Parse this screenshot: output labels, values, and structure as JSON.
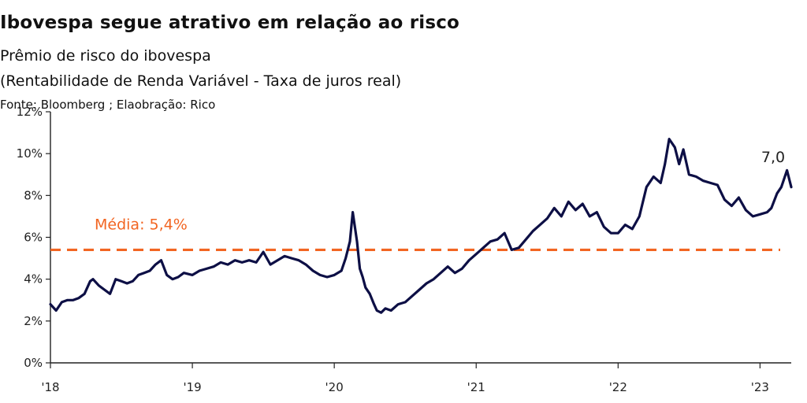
{
  "title": "Ibovespa segue atrativo em relação ao risco",
  "subtitle": "Prêmio de risco do ibovespa",
  "subtitle2": "(Rentabilidade de Renda Variável - Taxa de juros real)",
  "source": "Fonte: Bloomberg ; Elaobração: Rico",
  "colors": {
    "series": "#0d0f45",
    "mean": "#f26522",
    "axis": "#222222"
  },
  "chart_data": {
    "type": "line",
    "xlabel": "",
    "ylabel": "",
    "xlim": [
      2018.0,
      2023.22
    ],
    "ylim": [
      0,
      12
    ],
    "x_ticks": [
      2018,
      2019,
      2020,
      2021,
      2022,
      2023
    ],
    "x_tick_labels": [
      "'18",
      "'19",
      "'20",
      "'21",
      "'22",
      "'23"
    ],
    "y_ticks": [
      0,
      2,
      4,
      6,
      8,
      10,
      12
    ],
    "y_tick_labels": [
      "0%",
      "2%",
      "4%",
      "6%",
      "8%",
      "10%",
      "12%"
    ],
    "grid": false,
    "series": [
      {
        "x": [
          2018.0,
          2018.04,
          2018.08,
          2018.12,
          2018.16,
          2018.2,
          2018.24,
          2018.28,
          2018.3,
          2018.34,
          2018.38,
          2018.42,
          2018.46,
          2018.5,
          2018.54,
          2018.58,
          2018.62,
          2018.66,
          2018.7,
          2018.74,
          2018.78,
          2018.82,
          2018.86,
          2018.9,
          2018.94,
          2019.0,
          2019.05,
          2019.1,
          2019.15,
          2019.2,
          2019.25,
          2019.3,
          2019.35,
          2019.4,
          2019.45,
          2019.5,
          2019.55,
          2019.6,
          2019.65,
          2019.7,
          2019.75,
          2019.8,
          2019.85,
          2019.9,
          2019.95,
          2020.0,
          2020.05,
          2020.08,
          2020.11,
          2020.13,
          2020.16,
          2020.18,
          2020.2,
          2020.22,
          2020.25,
          2020.28,
          2020.3,
          2020.33,
          2020.36,
          2020.4,
          2020.45,
          2020.5,
          2020.55,
          2020.6,
          2020.65,
          2020.7,
          2020.75,
          2020.8,
          2020.85,
          2020.9,
          2020.95,
          2021.0,
          2021.05,
          2021.1,
          2021.15,
          2021.2,
          2021.25,
          2021.3,
          2021.35,
          2021.4,
          2021.45,
          2021.5,
          2021.55,
          2021.6,
          2021.65,
          2021.7,
          2021.75,
          2021.8,
          2021.85,
          2021.9,
          2021.95,
          2022.0,
          2022.05,
          2022.1,
          2022.15,
          2022.2,
          2022.25,
          2022.3,
          2022.33,
          2022.36,
          2022.4,
          2022.43,
          2022.46,
          2022.5,
          2022.55,
          2022.6,
          2022.65,
          2022.7,
          2022.75,
          2022.8,
          2022.85,
          2022.9,
          2022.95,
          2023.0,
          2023.05,
          2023.08,
          2023.12,
          2023.15,
          2023.19,
          2023.22
        ],
        "y": [
          2.8,
          2.5,
          2.9,
          3.0,
          3.0,
          3.1,
          3.3,
          3.9,
          4.0,
          3.7,
          3.5,
          3.3,
          4.0,
          3.9,
          3.8,
          3.9,
          4.2,
          4.3,
          4.4,
          4.7,
          4.9,
          4.2,
          4.0,
          4.1,
          4.3,
          4.2,
          4.4,
          4.5,
          4.6,
          4.8,
          4.7,
          4.9,
          4.8,
          4.9,
          4.8,
          5.3,
          4.7,
          4.9,
          5.1,
          5.0,
          4.9,
          4.7,
          4.4,
          4.2,
          4.1,
          4.2,
          4.4,
          5.0,
          5.8,
          7.2,
          5.8,
          4.5,
          4.1,
          3.6,
          3.3,
          2.8,
          2.5,
          2.4,
          2.6,
          2.5,
          2.8,
          2.9,
          3.2,
          3.5,
          3.8,
          4.0,
          4.3,
          4.6,
          4.3,
          4.5,
          4.9,
          5.2,
          5.5,
          5.8,
          5.9,
          6.2,
          5.4,
          5.5,
          5.9,
          6.3,
          6.6,
          6.9,
          7.4,
          7.0,
          7.7,
          7.3,
          7.6,
          7.0,
          7.2,
          6.5,
          6.2,
          6.2,
          6.6,
          6.4,
          7.0,
          8.4,
          8.9,
          8.6,
          9.5,
          10.7,
          10.3,
          9.5,
          10.2,
          9.0,
          8.9,
          8.7,
          8.6,
          8.5,
          7.8,
          7.5,
          7.9,
          7.3,
          7.0,
          7.1,
          7.2,
          7.4,
          8.1,
          8.4,
          9.2,
          8.4
        ]
      }
    ],
    "reference_line": {
      "y": 5.4,
      "label": "Média: 5,4%"
    },
    "annotation": {
      "text": "7,0",
      "x": 2023.12
    }
  }
}
